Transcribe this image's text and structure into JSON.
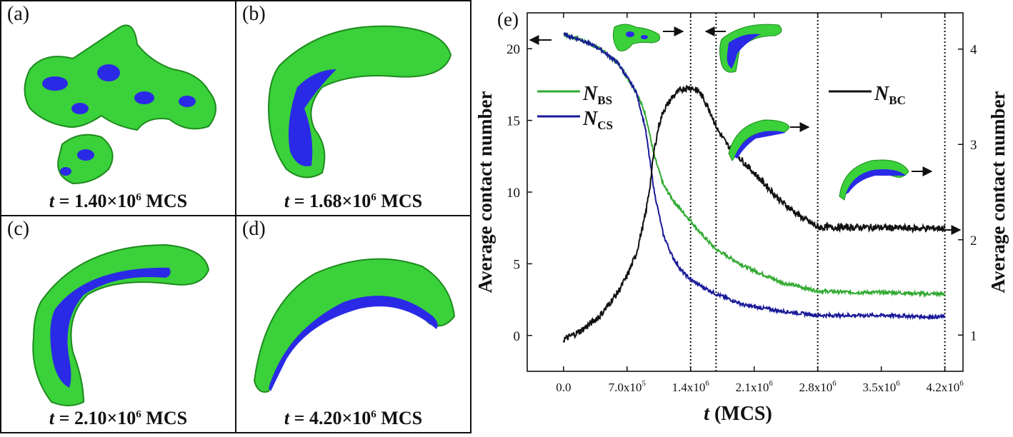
{
  "panels": [
    {
      "label": "(a)",
      "t_text": "t",
      "eq": " = 1.40×10",
      "exp": "6",
      "unit": " MCS"
    },
    {
      "label": "(b)",
      "t_text": "t",
      "eq": " = 1.68×10",
      "exp": "6",
      "unit": " MCS"
    },
    {
      "label": "(c)",
      "t_text": "t",
      "eq": " = 2.10×10",
      "exp": "6",
      "unit": " MCS"
    },
    {
      "label": "(d)",
      "t_text": "t",
      "eq": " = 4.20×10",
      "exp": "6",
      "unit": " MCS"
    }
  ],
  "colors": {
    "green": "#33cc33",
    "green_dark": "#1f8a1f",
    "blue": "#2222ee",
    "black": "#111111"
  },
  "chart_data": {
    "type": "line",
    "panel_label": "(e)",
    "xlabel_italic": "t",
    "xlabel_rest": " (MCS)",
    "ylabel": "Average contact number",
    "y2label": "Average contact number",
    "xlim": [
      -400000,
      4400000
    ],
    "ylim": [
      -2.5,
      22.5
    ],
    "y2lim": [
      0.62,
      4.38
    ],
    "x_ticks": [
      0,
      700000,
      1400000,
      2100000,
      2800000,
      3500000,
      4200000
    ],
    "x_tick_labels": [
      "0.0",
      "7.0x10",
      "1.4x10",
      "2.1x10",
      "2.8x10",
      "3.5x10",
      "4.2x10"
    ],
    "x_tick_exps": [
      "",
      "5",
      "6",
      "6",
      "6",
      "6",
      "6"
    ],
    "y_ticks": [
      0,
      5,
      10,
      15,
      20
    ],
    "y_tick_labels": [
      "0",
      "5",
      "10",
      "15",
      "20"
    ],
    "y2_ticks": [
      1,
      2,
      3,
      4
    ],
    "y2_tick_labels": [
      "1",
      "2",
      "3",
      "4"
    ],
    "vlines": [
      1400000,
      1680000,
      2800000,
      4200000
    ],
    "series": [
      {
        "name": "N",
        "sub": "BS",
        "axis": "left",
        "color": "#33aa33",
        "x": [
          0,
          200000,
          400000,
          600000,
          800000,
          900000,
          1000000,
          1100000,
          1200000,
          1300000,
          1400000,
          1500000,
          1680000,
          2000000,
          2400000,
          2800000,
          3200000,
          3600000,
          4000000,
          4200000
        ],
        "y": [
          21.0,
          20.6,
          20.0,
          19.0,
          17.0,
          15.5,
          12.5,
          10.5,
          9.5,
          8.7,
          8.0,
          7.2,
          6.0,
          4.8,
          3.7,
          3.1,
          3.0,
          3.0,
          2.9,
          2.9
        ]
      },
      {
        "name": "N",
        "sub": "CS",
        "axis": "left",
        "color": "#1a1a99",
        "x": [
          0,
          200000,
          400000,
          600000,
          800000,
          900000,
          1000000,
          1050000,
          1100000,
          1200000,
          1300000,
          1400000,
          1500000,
          1680000,
          2000000,
          2400000,
          2800000,
          3200000,
          3600000,
          4000000,
          4200000
        ],
        "y": [
          21.0,
          20.6,
          20.0,
          19.0,
          17.0,
          14.5,
          10.0,
          8.5,
          7.0,
          5.5,
          4.5,
          3.9,
          3.5,
          2.9,
          2.1,
          1.7,
          1.4,
          1.4,
          1.4,
          1.3,
          1.3
        ]
      },
      {
        "name": "N",
        "sub": "BC",
        "axis": "right",
        "color": "#111111",
        "x": [
          0,
          200000,
          400000,
          600000,
          700000,
          800000,
          900000,
          950000,
          1000000,
          1050000,
          1100000,
          1200000,
          1300000,
          1400000,
          1500000,
          1600000,
          1700000,
          1800000,
          2000000,
          2200000,
          2400000,
          2600000,
          2800000,
          3000000,
          3400000,
          3800000,
          4200000
        ],
        "y": [
          0.95,
          1.05,
          1.2,
          1.45,
          1.62,
          1.85,
          2.25,
          2.55,
          2.95,
          3.2,
          3.35,
          3.5,
          3.58,
          3.6,
          3.55,
          3.38,
          3.15,
          3.0,
          2.8,
          2.6,
          2.4,
          2.25,
          2.13,
          2.13,
          2.13,
          2.12,
          2.12
        ]
      }
    ]
  }
}
